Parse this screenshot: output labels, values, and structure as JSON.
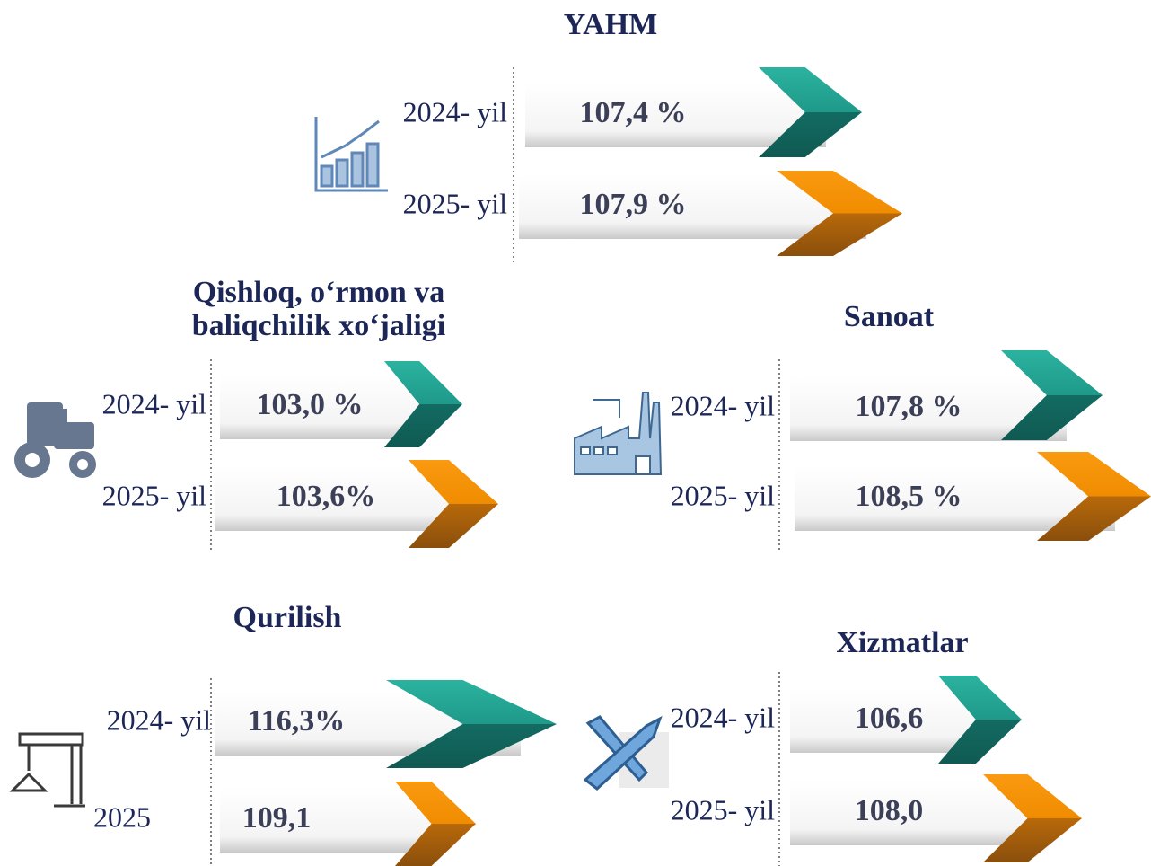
{
  "sections": [
    {
      "title": [
        "YAHM"
      ],
      "rows": [
        {
          "label": "2024- yil",
          "value": "107,4 %"
        },
        {
          "label": "2025- yil",
          "value": "107,9 %"
        }
      ]
    },
    {
      "title": [
        "Qishloq, o‘rmon va",
        "baliqchilik xo‘jaligi"
      ],
      "rows": [
        {
          "label": "2024- yil",
          "value": "103,0 %"
        },
        {
          "label": "2025- yil",
          "value": "103,6%"
        }
      ]
    },
    {
      "title": [
        "Sanoat"
      ],
      "rows": [
        {
          "label": "2024- yil",
          "value": "107,8 %"
        },
        {
          "label": "2025- yil",
          "value": "108,5 %"
        }
      ]
    },
    {
      "title": [
        "Qurilish"
      ],
      "rows": [
        {
          "label": "2024- yil",
          "value": "116,3%"
        },
        {
          "label": "2025",
          "value": "109,1"
        }
      ]
    },
    {
      "title": [
        "Xizmatlar"
      ],
      "rows": [
        {
          "label": "2024- yil",
          "value": "106,6"
        },
        {
          "label": "2025- yil",
          "value": "108,0"
        }
      ]
    }
  ]
}
